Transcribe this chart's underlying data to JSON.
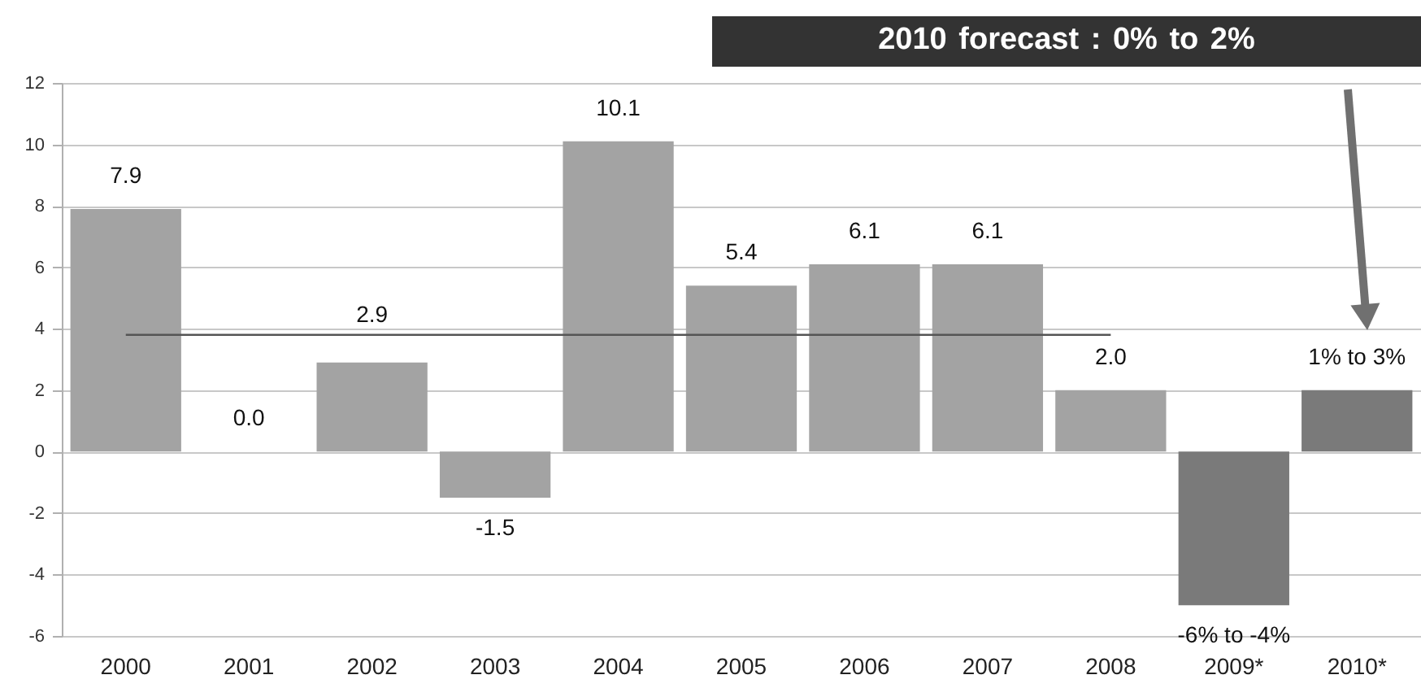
{
  "chart_data": {
    "type": "bar",
    "categories": [
      "2000",
      "2001",
      "2002",
      "2003",
      "2004",
      "2005",
      "2006",
      "2007",
      "2008",
      "2009*",
      "2010*"
    ],
    "series": [
      {
        "values": [
          7.9,
          0.0,
          2.9,
          -1.5,
          10.1,
          5.4,
          6.1,
          6.1,
          2.0,
          -5,
          2.0
        ],
        "colors": [
          "#a3a3a3",
          "#a3a3a3",
          "#a3a3a3",
          "#a3a3a3",
          "#a3a3a3",
          "#a3a3a3",
          "#a3a3a3",
          "#a3a3a3",
          "#a3a3a3",
          "#7a7a7a",
          "#7a7a7a"
        ],
        "value_labels": [
          "7.9",
          "0.0",
          "2.9",
          "-1.5",
          "10.1",
          "5.4",
          "6.1",
          "6.1",
          "2.0",
          null,
          null
        ]
      },
      {
        "type": "line",
        "color": "#555555",
        "values": [
          3.8,
          3.8,
          3.8,
          3.8,
          3.8,
          3.8,
          3.8,
          3.8,
          3.8,
          null,
          null
        ]
      }
    ],
    "ylim": [
      -6,
      12
    ],
    "yticks": [
      -6,
      -4,
      -2,
      0,
      2,
      4,
      6,
      8,
      10,
      12
    ],
    "grid": "y",
    "annotations": [
      "2010 forecast : 0% to 2%",
      {
        "text": "-6% to -4%",
        "x": "2009*",
        "y": -5
      },
      {
        "text": "1% to 3%",
        "x": "2010*",
        "y": 2.0
      }
    ]
  }
}
